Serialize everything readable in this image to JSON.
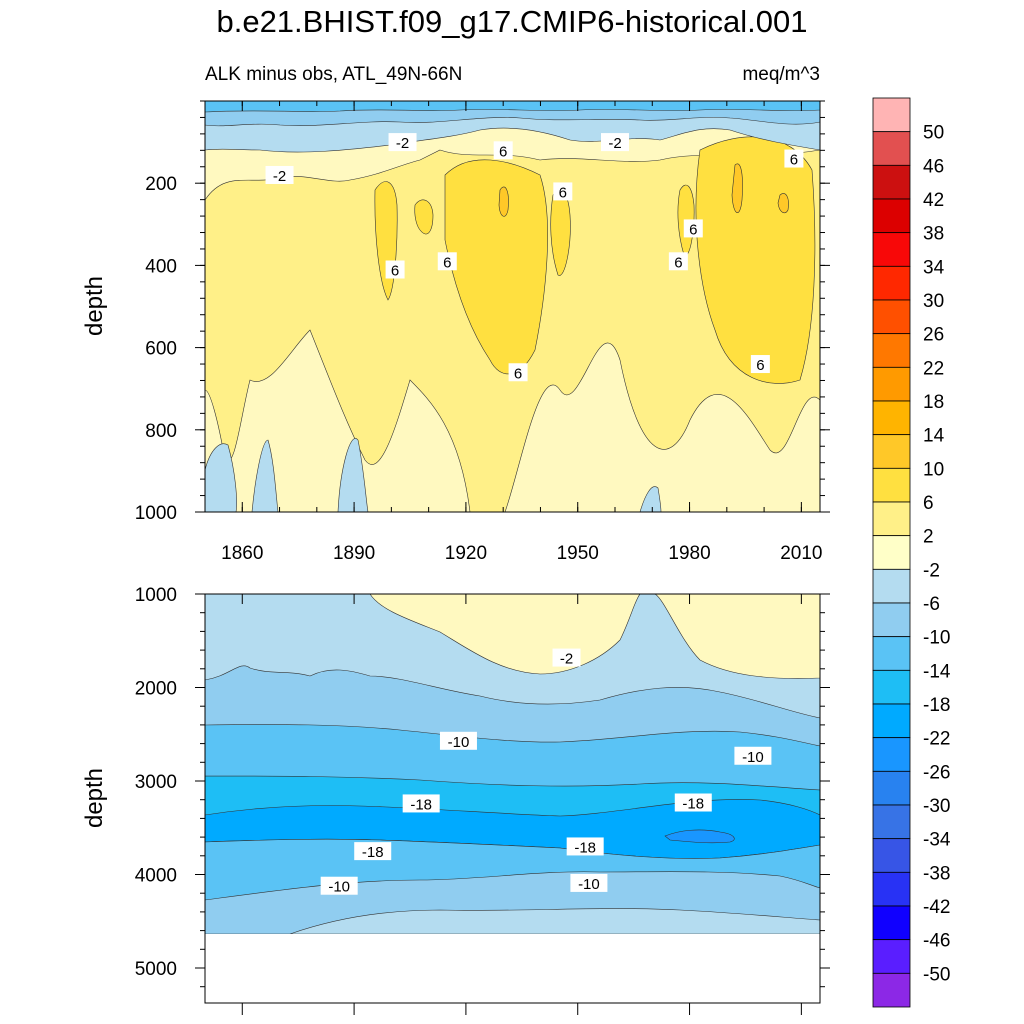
{
  "figure": {
    "title": "b.e21.BHIST.f09_g17.CMIP6-historical.001",
    "subtitle_left": "ALK minus obs, ATL_49N-66N",
    "subtitle_right": "meq/m^3"
  },
  "chart_data": [
    {
      "type": "heatmap",
      "subtype": "filled-contour",
      "panel": "upper",
      "title": "ALK minus obs, ATL_49N-66N",
      "xlabel": "",
      "ylabel": "depth",
      "xlim": [
        1850,
        2015
      ],
      "ylim": [
        1000,
        0
      ],
      "x_ticks": [
        1860,
        1890,
        1920,
        1950,
        1980,
        2010
      ],
      "y_ticks": [
        200,
        400,
        600,
        800,
        1000
      ],
      "contour_labels": [
        {
          "text": "-2",
          "x": 1903,
          "y": 100
        },
        {
          "text": "-2",
          "x": 1870,
          "y": 180
        },
        {
          "text": "-2",
          "x": 1960,
          "y": 100
        },
        {
          "text": "6",
          "x": 1930,
          "y": 120
        },
        {
          "text": "6",
          "x": 1946,
          "y": 220
        },
        {
          "text": "6",
          "x": 2008,
          "y": 140
        },
        {
          "text": "6",
          "x": 1981,
          "y": 310
        },
        {
          "text": "6",
          "x": 1977,
          "y": 390
        },
        {
          "text": "6",
          "x": 1901,
          "y": 410
        },
        {
          "text": "6",
          "x": 1915,
          "y": 390
        },
        {
          "text": "6",
          "x": 1934,
          "y": 660
        },
        {
          "text": "6",
          "x": 1999,
          "y": 640
        }
      ]
    },
    {
      "type": "heatmap",
      "subtype": "filled-contour",
      "panel": "lower",
      "xlabel": "",
      "ylabel": "depth",
      "xlim": [
        1850,
        2015
      ],
      "ylim": [
        5400,
        1000
      ],
      "y_ticks": [
        1000,
        2000,
        3000,
        4000,
        5000
      ],
      "contour_labels": [
        {
          "text": "-2",
          "x": 1947,
          "y": 1680
        },
        {
          "text": "-10",
          "x": 1918,
          "y": 2570
        },
        {
          "text": "-10",
          "x": 1997,
          "y": 2730
        },
        {
          "text": "-18",
          "x": 1908,
          "y": 3240
        },
        {
          "text": "-18",
          "x": 1981,
          "y": 3230
        },
        {
          "text": "-18",
          "x": 1895,
          "y": 3750
        },
        {
          "text": "-18",
          "x": 1952,
          "y": 3700
        },
        {
          "text": "-10",
          "x": 1886,
          "y": 4120
        },
        {
          "text": "-10",
          "x": 1953,
          "y": 4090
        }
      ]
    }
  ],
  "colorbar": {
    "labels": [
      "50",
      "46",
      "42",
      "38",
      "34",
      "30",
      "26",
      "22",
      "18",
      "14",
      "10",
      "6",
      "2",
      "-2",
      "-6",
      "-10",
      "-14",
      "-18",
      "-22",
      "-26",
      "-30",
      "-34",
      "-38",
      "-42",
      "-46",
      "-50"
    ],
    "colors": [
      "#ffb4b4",
      "#e25050",
      "#cc1010",
      "#dc0000",
      "#f80808",
      "#ff2800",
      "#ff5000",
      "#ff7800",
      "#ff9a00",
      "#ffb400",
      "#ffc828",
      "#ffe040",
      "#fff088",
      "#ffffc8",
      "#b4dcf0",
      "#90cdf0",
      "#5ac3f5",
      "#1ebef5",
      "#00aaff",
      "#1996ff",
      "#2882f0",
      "#3773e6",
      "#3755e6",
      "#2832f5",
      "#1000ff",
      "#5a1eff",
      "#8c28e6"
    ]
  },
  "style": {
    "upper_fill_base": "#fff9c0",
    "upper_fill_mid": "#fff088",
    "upper_fill_strong": "#ffe040",
    "upper_fill_peak": "#ffc828",
    "lower_fill_base": "#b4dcf0"
  }
}
